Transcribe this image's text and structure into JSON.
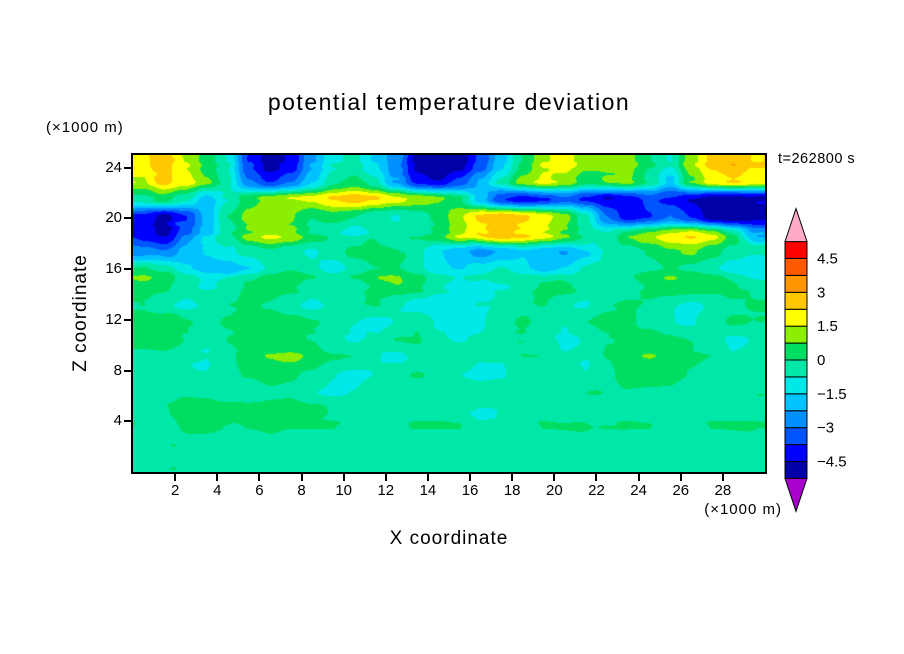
{
  "title": "potential temperature deviation",
  "timestamp": "t=262800 s",
  "axes": {
    "x_label": "X coordinate",
    "x_unit": "(×1000 m)",
    "y_label": "Z coordinate",
    "y_unit": "(×1000 m)",
    "x_ticks": [
      2,
      4,
      6,
      8,
      10,
      12,
      14,
      16,
      18,
      20,
      22,
      24,
      26,
      28
    ],
    "z_ticks": [
      4,
      8,
      12,
      16,
      20,
      24
    ],
    "x_range": [
      0,
      30
    ],
    "z_range": [
      0,
      25
    ]
  },
  "colorbar": {
    "labels": [
      "4.5",
      "3",
      "1.5",
      "0",
      "−1.5",
      "−3",
      "−4.5"
    ],
    "label_values": [
      4.5,
      3,
      1.5,
      0,
      -1.5,
      -3,
      -4.5
    ],
    "levels_min": -5.25,
    "levels_max": 5.25,
    "level_step": 0.75,
    "segment_colors_bottom_to_top": [
      "#0000A8",
      "#0000FF",
      "#0055FF",
      "#0090FF",
      "#00C3FF",
      "#00E8E8",
      "#00E8A8",
      "#00DE62",
      "#8CEE00",
      "#FFFF00",
      "#FFC800",
      "#FF9600",
      "#FF5A00",
      "#FF0000"
    ],
    "under_color": "#AA00CC",
    "over_color": "#FFAAC8",
    "outline_color": "#000000"
  },
  "chart_data": {
    "type": "heatmap",
    "title": "potential temperature deviation",
    "xlabel": "X coordinate (×1000 m)",
    "ylabel": "Z coordinate (×1000 m)",
    "x_range": [
      0,
      30
    ],
    "z_range": [
      0,
      25
    ],
    "time_label": "t=262800 s",
    "contour_levels": [
      -5.25,
      -4.5,
      -3.75,
      -3,
      -2.25,
      -1.5,
      -0.75,
      0,
      0.75,
      1.5,
      2.25,
      3,
      3.75,
      4.5,
      5.25
    ],
    "grid_nx": 30,
    "grid_nz": 18,
    "values_top_to_bottom": [
      [
        3.2,
        3.8,
        2.6,
        1.6,
        0.4,
        -2.6,
        -3.8,
        -3.2,
        -1.2,
        0.3,
        0.6,
        -0.4,
        -1.6,
        -3.6,
        -4.2,
        -3.8,
        -2.4,
        -0.6,
        1.2,
        2.6,
        3.0,
        2.2,
        2.0,
        2.2,
        1.2,
        0.4,
        2.4,
        3.6,
        4.0,
        3.4
      ],
      [
        2.6,
        3.6,
        3.0,
        2.0,
        0.6,
        -1.8,
        -2.8,
        -2.0,
        -0.6,
        0.8,
        1.4,
        0.6,
        -1.4,
        -3.0,
        -3.4,
        -2.4,
        -1.0,
        0.6,
        2.2,
        2.8,
        2.4,
        1.4,
        1.8,
        2.0,
        1.0,
        -0.6,
        1.8,
        3.0,
        3.4,
        3.0
      ],
      [
        0.8,
        1.4,
        0.6,
        -0.8,
        0.4,
        1.6,
        2.2,
        2.6,
        2.8,
        3.4,
        3.8,
        3.4,
        2.8,
        2.4,
        2.0,
        1.2,
        -0.8,
        -2.6,
        -3.2,
        -2.8,
        -2.2,
        -3.0,
        -3.6,
        -3.2,
        -2.4,
        -2.8,
        -3.4,
        -4.0,
        -4.2,
        -3.8
      ],
      [
        -2.8,
        -3.6,
        -2.6,
        -0.8,
        1.2,
        2.2,
        2.6,
        2.0,
        1.2,
        1.6,
        1.2,
        0.6,
        0.4,
        0.8,
        1.4,
        2.6,
        3.6,
        4.0,
        3.6,
        3.0,
        2.2,
        0.6,
        -1.8,
        -3.0,
        -2.6,
        -1.8,
        -2.6,
        -3.8,
        -4.2,
        -3.6
      ],
      [
        -3.4,
        -3.8,
        -2.4,
        -1.0,
        0.6,
        1.6,
        2.2,
        1.8,
        0.8,
        0.3,
        -0.4,
        0.3,
        0.6,
        0.4,
        1.0,
        2.2,
        3.0,
        3.4,
        3.0,
        2.4,
        1.6,
        0.8,
        0.4,
        1.2,
        1.8,
        2.4,
        2.8,
        2.2,
        0.8,
        -1.2
      ],
      [
        -1.4,
        -1.8,
        -0.8,
        -0.3,
        0.3,
        0.6,
        1.0,
        0.6,
        0.3,
        0.8,
        1.4,
        1.6,
        1.2,
        0.6,
        -0.3,
        -0.8,
        -1.4,
        -1.0,
        -0.4,
        -0.8,
        -1.2,
        -0.6,
        0.3,
        0.8,
        1.2,
        1.8,
        2.0,
        1.4,
        0.8,
        0.4
      ],
      [
        1.0,
        0.6,
        -0.4,
        -1.0,
        -1.2,
        -0.6,
        0.3,
        0.8,
        0.4,
        -0.3,
        0.4,
        0.9,
        1.0,
        0.4,
        -0.4,
        -0.6,
        -0.3,
        0.3,
        -0.4,
        -0.9,
        -0.5,
        0.3,
        0.5,
        0.3,
        0.7,
        1.0,
        0.7,
        0.3,
        -0.3,
        -0.5
      ],
      [
        0.5,
        0.3,
        -0.3,
        -0.7,
        -0.4,
        0.3,
        0.5,
        0.3,
        -0.3,
        -0.5,
        -0.3,
        0.3,
        0.7,
        0.3,
        -0.5,
        -0.9,
        -1.1,
        -0.7,
        -0.3,
        0.3,
        0.5,
        0.3,
        -0.3,
        -0.5,
        0.3,
        0.7,
        0.5,
        0.3,
        0.4,
        0.3
      ],
      [
        0.3,
        -0.3,
        -0.5,
        -0.3,
        0.3,
        0.5,
        0.3,
        -0.3,
        -0.5,
        -0.3,
        0.3,
        0.4,
        -0.3,
        -0.7,
        -0.9,
        -0.7,
        -0.4,
        -0.3,
        0.3,
        0.4,
        -0.3,
        -0.4,
        0.3,
        0.5,
        0.3,
        -0.3,
        -0.5,
        -0.3,
        0.3,
        0.5
      ],
      [
        0.9,
        1.1,
        0.5,
        0.3,
        0.5,
        0.9,
        1.1,
        0.9,
        0.5,
        0.3,
        -0.3,
        -0.5,
        -0.3,
        0.3,
        -0.4,
        -0.7,
        -0.4,
        0.3,
        0.5,
        0.3,
        -0.3,
        0.3,
        0.7,
        0.5,
        0.3,
        -0.3,
        -0.4,
        0.3,
        0.5,
        0.3
      ],
      [
        0.5,
        0.7,
        0.3,
        -0.3,
        0.3,
        0.5,
        0.7,
        0.5,
        0.3,
        -0.3,
        -0.5,
        -0.3,
        0.3,
        0.4,
        -0.3,
        -0.5,
        -0.3,
        0.3,
        0.3,
        -0.3,
        -0.5,
        -0.3,
        0.3,
        0.5,
        0.7,
        0.5,
        0.3,
        -0.3,
        -0.5,
        -0.3
      ],
      [
        0.3,
        0.3,
        -0.3,
        -0.4,
        0.3,
        0.7,
        1.1,
        1.3,
        0.9,
        0.4,
        0.3,
        -0.3,
        -0.5,
        -0.3,
        0.3,
        0.3,
        -0.3,
        -0.3,
        0.3,
        0.3,
        -0.3,
        -0.4,
        0.4,
        0.9,
        1.1,
        0.9,
        0.5,
        0.3,
        -0.3,
        -0.3
      ],
      [
        0.4,
        0.3,
        -0.3,
        -0.3,
        0.3,
        0.5,
        0.7,
        0.5,
        0.3,
        -0.3,
        -0.5,
        -0.3,
        0.3,
        0.5,
        0.3,
        -0.3,
        -0.5,
        -0.4,
        0.3,
        0.4,
        0.3,
        -0.3,
        0.3,
        0.7,
        0.9,
        0.7,
        0.4,
        0.3,
        0.3,
        -0.3
      ],
      [
        0.3,
        0.3,
        0.4,
        0.3,
        -0.3,
        -0.3,
        0.3,
        0.3,
        -0.3,
        -0.4,
        -0.3,
        0.3,
        0.3,
        -0.3,
        -0.3,
        0.3,
        0.3,
        0.4,
        0.3,
        -0.3,
        -0.3,
        0.3,
        0.3,
        0.4,
        0.3,
        0.3,
        -0.3,
        -0.3,
        0.3,
        0.3
      ],
      [
        0.3,
        0.4,
        0.7,
        0.9,
        1.1,
        0.9,
        0.7,
        0.9,
        0.7,
        0.4,
        0.3,
        -0.3,
        -0.3,
        0.3,
        0.4,
        -0.3,
        -0.4,
        -0.3,
        0.3,
        0.3,
        -0.3,
        -0.3,
        0.3,
        0.3,
        -0.3,
        -0.3,
        0.3,
        0.3,
        0.3,
        0.3
      ],
      [
        0.3,
        0.3,
        0.4,
        0.4,
        0.3,
        0.3,
        0.4,
        0.3,
        0.3,
        0.3,
        -0.3,
        -0.3,
        0.3,
        0.3,
        0.3,
        0.3,
        -0.3,
        -0.3,
        -0.3,
        0.3,
        0.3,
        0.3,
        0.3,
        0.3,
        0.3,
        -0.3,
        -0.3,
        0.3,
        0.3,
        0.3
      ],
      [
        0.3,
        0.3,
        0.3,
        0.3,
        0.3,
        0.3,
        0.3,
        0.3,
        0.3,
        0.3,
        0.3,
        0.3,
        -0.3,
        -0.3,
        0.3,
        0.3,
        0.3,
        0.3,
        0.3,
        0.3,
        0.3,
        0.3,
        0.3,
        0.3,
        0.3,
        0.3,
        0.3,
        0.3,
        0.3,
        0.3
      ],
      [
        0.3,
        0.3,
        0.3,
        0.3,
        0.3,
        0.3,
        0.3,
        0.3,
        0.3,
        0.3,
        0.3,
        0.3,
        0.3,
        0.3,
        0.3,
        0.3,
        0.3,
        0.3,
        0.3,
        0.3,
        0.3,
        0.3,
        0.3,
        0.3,
        0.3,
        0.3,
        0.3,
        0.3,
        0.3,
        0.3
      ]
    ]
  }
}
